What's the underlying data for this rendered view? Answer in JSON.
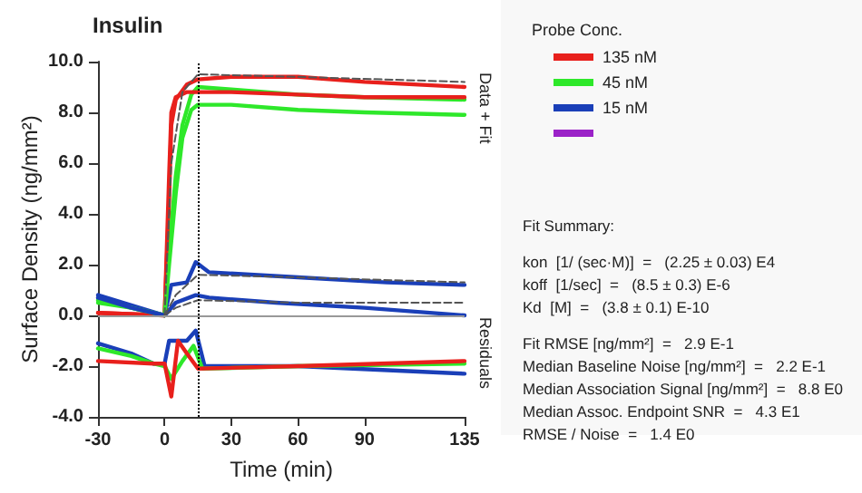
{
  "chart_data": {
    "type": "line",
    "title": "Insulin",
    "xlabel": "Time (min)",
    "ylabel": "Surface Density (ng/mm²)",
    "legend_title": "Probe Conc.",
    "legend": "right",
    "grid": false,
    "marker": "none",
    "line_style": "solid",
    "xlim": [
      -30,
      135
    ],
    "xticks": [
      -30,
      0,
      30,
      60,
      90,
      135
    ],
    "ylim": [
      -4,
      10
    ],
    "yticks": [
      {
        "value": -4,
        "label": "-4.0"
      },
      {
        "value": -2,
        "label": "-2.0"
      },
      {
        "value": 0,
        "label": "0.0"
      },
      {
        "value": 2,
        "label": "2.0"
      },
      {
        "value": 4,
        "label": "4.0"
      },
      {
        "value": 6,
        "label": "6.0"
      },
      {
        "value": 8,
        "label": "8.0"
      },
      {
        "value": 10,
        "label": "10.0"
      }
    ],
    "ref_lines": [
      {
        "axis": "x",
        "value": 15,
        "color": "#000000",
        "line_style": "dotted"
      },
      {
        "axis": "y",
        "value": 0,
        "color": "#999999",
        "line_style": "solid"
      }
    ],
    "annotations": [
      "Data + Fit",
      "Residuals",
      "Fit Summary:",
      "kon  [1/ (sec·M)]  =   (2.25 ± 0.03) E4",
      "koff  [1/sec]  =   (8.5 ± 0.3) E-6",
      "Kd  [M]  =   (3.8 ± 0.1) E-10",
      "Fit RMSE [ng/mm²]  =   2.9 E-1",
      "Median Baseline Noise [ng/mm²]  =   2.2 E-1",
      "Median Association Signal [ng/mm²]  =   8.8 E0",
      "Median Assoc. Endpoint SNR  =   4.3 E1",
      "RMSE / Noise  =   1.4 E0"
    ],
    "series": [
      {
        "name": "135 nM",
        "color": "#e8201c",
        "x": [
          -30,
          0,
          2,
          3,
          5,
          10,
          15,
          30,
          60,
          90,
          135
        ],
        "values": [
          0.1,
          0.0,
          4.5,
          7.5,
          8.5,
          9.1,
          9.3,
          9.4,
          9.4,
          9.2,
          9.0
        ]
      },
      {
        "name": "45 nM",
        "color": "#2ee82a",
        "x": [
          -30,
          -15,
          0,
          2,
          5,
          8,
          12,
          15,
          30,
          60,
          90,
          135
        ],
        "values": [
          0.6,
          0.3,
          0.0,
          2.5,
          5.5,
          7.5,
          8.7,
          9.0,
          8.9,
          8.7,
          8.6,
          8.5
        ]
      },
      {
        "name": "15 nM",
        "color": "#1a3fb8",
        "x": [
          -30,
          -15,
          0,
          3,
          10,
          14,
          20,
          60,
          100,
          135
        ],
        "values": [
          0.8,
          0.4,
          0.0,
          1.2,
          1.3,
          2.1,
          1.7,
          1.5,
          1.3,
          1.2
        ]
      },
      {
        "name": null,
        "color": "#9b22c8"
      },
      {
        "color": "#e8201c",
        "x": [
          -30,
          0,
          2,
          3,
          5,
          10,
          15,
          30,
          60,
          90,
          135
        ],
        "values": [
          0.1,
          0.0,
          5.5,
          8.0,
          8.6,
          8.8,
          8.8,
          8.8,
          8.7,
          8.6,
          8.6
        ]
      },
      {
        "color": "#2ee82a",
        "x": [
          -30,
          -15,
          0,
          2,
          5,
          8,
          12,
          15,
          30,
          60,
          90,
          135
        ],
        "values": [
          0.5,
          0.3,
          0.0,
          2.0,
          4.8,
          7.0,
          8.1,
          8.3,
          8.3,
          8.1,
          8.0,
          7.9
        ]
      },
      {
        "color": "#1a3fb8",
        "x": [
          -30,
          -15,
          0,
          5,
          14,
          20,
          50,
          90,
          135
        ],
        "values": [
          0.7,
          0.3,
          0.0,
          0.5,
          0.8,
          0.7,
          0.5,
          0.3,
          0.0
        ]
      },
      {
        "color": "#555555",
        "line_style": "dashed",
        "x": [
          0,
          3,
          8,
          15,
          60,
          135
        ],
        "values": [
          0.0,
          6.0,
          8.8,
          9.5,
          9.4,
          9.2
        ]
      },
      {
        "color": "#555555",
        "line_style": "dashed",
        "x": [
          0,
          5,
          15,
          60,
          135
        ],
        "values": [
          0.0,
          0.8,
          1.6,
          1.5,
          1.3
        ]
      },
      {
        "color": "#555555",
        "line_style": "dashed",
        "x": [
          0,
          5,
          15,
          60,
          135
        ],
        "values": [
          0.0,
          0.3,
          0.6,
          0.5,
          0.5
        ]
      },
      {
        "color": "#1a3fb8",
        "x": [
          -30,
          -15,
          -5,
          0,
          2,
          10,
          14,
          18,
          60,
          135
        ],
        "values": [
          -1.1,
          -1.5,
          -1.9,
          -1.9,
          -1.0,
          -1.0,
          -0.6,
          -2.0,
          -2.0,
          -2.3
        ]
      },
      {
        "color": "#2ee82a",
        "x": [
          -30,
          -15,
          -5,
          0,
          3,
          8,
          13,
          17,
          60,
          135
        ],
        "values": [
          -1.3,
          -1.6,
          -1.9,
          -2.0,
          -2.5,
          -1.8,
          -1.2,
          -2.1,
          -2.0,
          -1.9
        ]
      },
      {
        "color": "#e8201c",
        "x": [
          -30,
          -5,
          0,
          3,
          6,
          10,
          15,
          60,
          135
        ],
        "values": [
          -1.8,
          -1.9,
          -1.9,
          -3.2,
          -1.0,
          -1.5,
          -2.1,
          -2.0,
          -1.8
        ]
      }
    ]
  }
}
